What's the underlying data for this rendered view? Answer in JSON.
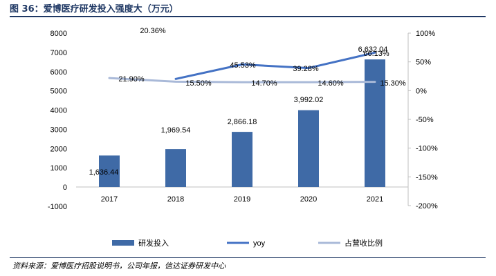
{
  "figure": {
    "title": "图 36：爱博医疗研发投入强度大（万元）",
    "source": "资料来源：爱博医疗招股说明书，公司年报，信达证券研发中心"
  },
  "colors": {
    "bar": "#3f6aa6",
    "yoy": "#4472c4",
    "ratio": "#a9b9d8",
    "title": "#1f3864"
  },
  "chart_data": {
    "type": "bar",
    "categories": [
      "2017",
      "2018",
      "2019",
      "2020",
      "2021"
    ],
    "series": [
      {
        "name": "研发投入",
        "kind": "bar",
        "axis": "left",
        "values": [
          1636.44,
          1969.54,
          2866.18,
          3992.02,
          6632.04
        ],
        "labels": [
          "1,636.44",
          "1,969.54",
          "2,866.18",
          "3,992.02",
          "6,632.04"
        ]
      },
      {
        "name": "yoy",
        "kind": "line",
        "axis": "right",
        "values": [
          null,
          20.36,
          45.53,
          39.28,
          66.13
        ],
        "labels": [
          "",
          "20.36%",
          "45.53%",
          "39.28%",
          "66.13%"
        ]
      },
      {
        "name": "占营收比例",
        "kind": "line",
        "axis": "right",
        "values": [
          21.9,
          15.5,
          14.7,
          14.6,
          15.3
        ],
        "labels": [
          "21.90%",
          "15.50%",
          "14.70%",
          "14.60%",
          "15.30%"
        ]
      }
    ],
    "y_left": {
      "min": -1000,
      "max": 8000,
      "ticks": [
        -1000,
        0,
        1000,
        2000,
        3000,
        4000,
        5000,
        6000,
        7000,
        8000
      ],
      "tick_labels": [
        "-1000",
        "0",
        "1000",
        "2000",
        "3000",
        "4000",
        "5000",
        "6000",
        "7000",
        "8000"
      ]
    },
    "y_right": {
      "min": -200,
      "max": 100,
      "ticks": [
        -200,
        -150,
        -100,
        -50,
        0,
        50,
        100
      ],
      "tick_labels": [
        "-200%",
        "-150%",
        "-100%",
        "-50%",
        "0%",
        "50%",
        "100%"
      ]
    },
    "legend": [
      "研发投入",
      "yoy",
      "占营收比例"
    ],
    "legend_position": "bottom",
    "grid": false
  }
}
